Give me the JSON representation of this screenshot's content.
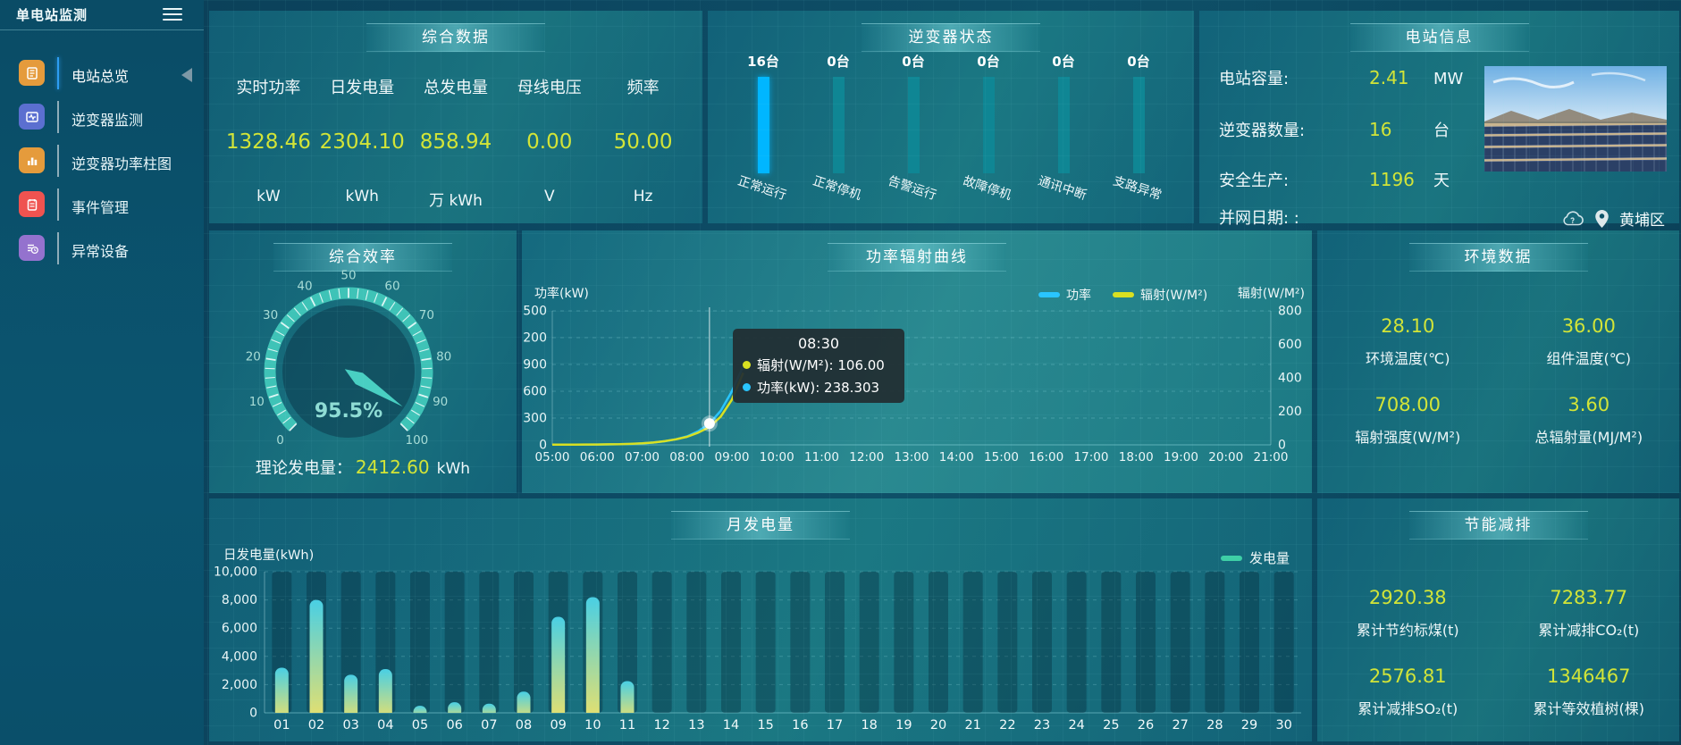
{
  "app": {
    "title": "单电站监测"
  },
  "sidebar": {
    "items": [
      {
        "label": "电站总览",
        "icon": "report-icon",
        "color": "#e59b3c",
        "active": true
      },
      {
        "label": "逆变器监测",
        "icon": "monitor-wave-icon",
        "color": "#5b6fd0",
        "active": false
      },
      {
        "label": "逆变器功率柱图",
        "icon": "bar-chart-icon",
        "color": "#e59b3c",
        "active": false
      },
      {
        "label": "事件管理",
        "icon": "clipboard-icon",
        "color": "#ef5350",
        "active": false
      },
      {
        "label": "异常设备",
        "icon": "device-alarm-icon",
        "color": "#9472ce",
        "active": false
      }
    ]
  },
  "summary": {
    "title": "综合数据",
    "metrics": [
      {
        "label": "实时功率",
        "value": "1328.46",
        "unit": "kW"
      },
      {
        "label": "日发电量",
        "value": "2304.10",
        "unit": "kWh"
      },
      {
        "label": "总发电量",
        "value": "858.94",
        "unit": "万 kWh"
      },
      {
        "label": "母线电压",
        "value": "0.00",
        "unit": "V"
      },
      {
        "label": "频率",
        "value": "50.00",
        "unit": "Hz"
      }
    ]
  },
  "inverter_status": {
    "title": "逆变器状态",
    "bars": [
      {
        "count": "16台",
        "label": "正常运行",
        "color": "#00b6ff",
        "glow": true
      },
      {
        "count": "0台",
        "label": "正常停机",
        "color": "#0f8694",
        "glow": false
      },
      {
        "count": "0台",
        "label": "告警运行",
        "color": "#0f8694",
        "glow": false
      },
      {
        "count": "0台",
        "label": "故障停机",
        "color": "#0f8694",
        "glow": false
      },
      {
        "count": "0台",
        "label": "通讯中断",
        "color": "#0f8694",
        "glow": false
      },
      {
        "count": "0台",
        "label": "支路异常",
        "color": "#0f8694",
        "glow": false
      }
    ]
  },
  "station_info": {
    "title": "电站信息",
    "rows": [
      {
        "label": "电站容量:",
        "value": "2.41",
        "unit": "MW"
      },
      {
        "label": "逆变器数量:",
        "value": "16",
        "unit": "台"
      },
      {
        "label": "安全生产:",
        "value": "1196",
        "unit": "天"
      },
      {
        "label": "并网日期: :",
        "value": "",
        "unit": ""
      }
    ],
    "location": "黄埔区"
  },
  "efficiency": {
    "title": "综合效率",
    "value_label": "95.5%",
    "theory": {
      "label": "理论发电量：",
      "value": "2412.60",
      "unit": "kWh"
    }
  },
  "power_curve": {
    "title": "功率辐射曲线",
    "tooltip": {
      "time": "08:30",
      "lines": [
        {
          "color": "#d9e021",
          "label": "辐射(W/M²)",
          "value": "106.00"
        },
        {
          "color": "#29c5ff",
          "label": "功率(kW)",
          "value": "238.303"
        }
      ]
    }
  },
  "environment": {
    "title": "环境数据",
    "items": [
      {
        "value": "28.10",
        "label": "环境温度(℃)"
      },
      {
        "value": "36.00",
        "label": "组件温度(℃)"
      },
      {
        "value": "708.00",
        "label": "辐射强度(W/M²)"
      },
      {
        "value": "3.60",
        "label": "总辐射量(MJ/M²)"
      }
    ]
  },
  "monthly": {
    "title": "月发电量"
  },
  "saving": {
    "title": "节能减排",
    "items": [
      {
        "value": "2920.38",
        "label": "累计节约标煤(t)"
      },
      {
        "value": "7283.77",
        "label": "累计减排CO₂(t)"
      },
      {
        "value": "2576.81",
        "label": "累计减排SO₂(t)"
      },
      {
        "value": "1346467",
        "label": "累计等效植树(棵)"
      }
    ]
  },
  "chart_data": [
    {
      "id": "power_radiation",
      "type": "line",
      "title": "功率辐射曲线",
      "x_hours": [
        5,
        5.25,
        5.5,
        5.75,
        6,
        6.25,
        6.5,
        6.75,
        7,
        7.25,
        7.5,
        7.75,
        8,
        8.25,
        8.5,
        8.75,
        9,
        9.25
      ],
      "x_ticks": [
        "05:00",
        "06:00",
        "07:00",
        "08:00",
        "09:00",
        "10:00",
        "11:00",
        "12:00",
        "13:00",
        "14:00",
        "15:00",
        "16:00",
        "17:00",
        "18:00",
        "19:00",
        "20:00",
        "21:00"
      ],
      "series": [
        {
          "name": "功率",
          "color": "#29c5ff",
          "axis": "left",
          "values": [
            2,
            2,
            2,
            3,
            4,
            5,
            7,
            10,
            16,
            26,
            40,
            62,
            95,
            152,
            238.3,
            380,
            600,
            880
          ]
        },
        {
          "name": "辐射(W/M²)",
          "color": "#d9e021",
          "axis": "right",
          "values": [
            1,
            1,
            1,
            2,
            2,
            3,
            4,
            6,
            9,
            14,
            22,
            33,
            48,
            73,
            106,
            168,
            270,
            430
          ]
        }
      ],
      "left_axis": {
        "name": "功率(kW)",
        "min": 0,
        "max": 1500,
        "ticks": [
          "0",
          "300",
          "600",
          "900",
          "1,200",
          "1,500"
        ]
      },
      "right_axis": {
        "name": "辐射(W/M²)",
        "min": 0,
        "max": 800,
        "ticks": [
          "0",
          "200",
          "400",
          "600",
          "800"
        ]
      },
      "hover": {
        "x_tick": "08:30",
        "x_hour": 8.5,
        "power": 238.303,
        "radiation": 106.0
      },
      "legend_position": "top-right",
      "grid": true
    },
    {
      "id": "monthly_generation",
      "type": "bar",
      "title": "月发电量",
      "ylabel": "日发电量(kWh)",
      "legend": "发电量",
      "ylim": [
        0,
        10000
      ],
      "y_ticks": [
        "0",
        "2,000",
        "4,000",
        "6,000",
        "8,000",
        "10,000"
      ],
      "categories": [
        "01",
        "02",
        "03",
        "04",
        "05",
        "06",
        "07",
        "08",
        "09",
        "10",
        "11",
        "12",
        "13",
        "14",
        "15",
        "16",
        "17",
        "18",
        "19",
        "20",
        "21",
        "22",
        "23",
        "24",
        "25",
        "26",
        "27",
        "28",
        "29",
        "30"
      ],
      "values": [
        3200,
        8000,
        2700,
        3100,
        500,
        750,
        650,
        1500,
        6800,
        8200,
        2250,
        0,
        0,
        0,
        0,
        0,
        0,
        0,
        0,
        0,
        0,
        0,
        0,
        0,
        0,
        0,
        0,
        0,
        0,
        0
      ]
    },
    {
      "id": "efficiency_gauge",
      "type": "gauge",
      "min": 0,
      "max": 100,
      "value": 95.5,
      "tick_labels": [
        "0",
        "10",
        "20",
        "30",
        "40",
        "50",
        "60",
        "70",
        "80",
        "90",
        "100"
      ]
    },
    {
      "id": "inverter_status",
      "type": "bar",
      "categories": [
        "正常运行",
        "正常停机",
        "告警运行",
        "故障停机",
        "通讯中断",
        "支路异常"
      ],
      "values": [
        16,
        0,
        0,
        0,
        0,
        0
      ]
    }
  ]
}
